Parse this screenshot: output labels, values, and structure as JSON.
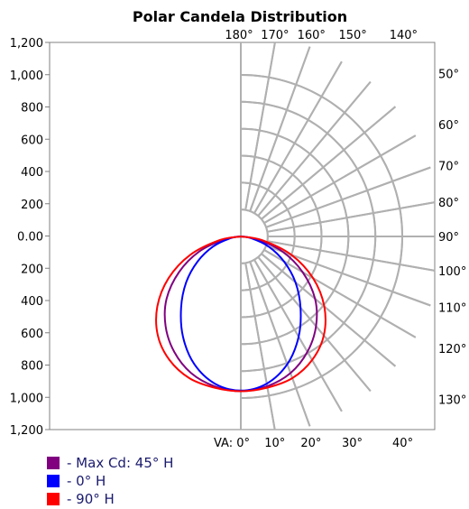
{
  "chart_data": {
    "type": "polar-candela",
    "title": "Polar Candela Distribution",
    "r_max": 1200,
    "y_tick_labels": [
      "1,200",
      "1,000",
      "800",
      "600",
      "400",
      "200",
      "0.00",
      "200",
      "400",
      "600",
      "800",
      "1,000",
      "1,200"
    ],
    "top_angle_labels": [
      "180°",
      "170°",
      "160°",
      "150°",
      "140°"
    ],
    "right_angle_labels": [
      "130°",
      "120°",
      "110°",
      "100°",
      "90°",
      "80°",
      "70°",
      "60°",
      "50°"
    ],
    "bottom_angle_labels": [
      "VA: 0°",
      "10°",
      "20°",
      "30°",
      "40°"
    ],
    "angles_deg": [
      0,
      10,
      20,
      30,
      40,
      50,
      60,
      70,
      80,
      90
    ],
    "series": [
      {
        "name": "Max Cd: 45° H",
        "color": "#800080",
        "candela": [
          1150,
          1130,
          1080,
          990,
          870,
          720,
          530,
          330,
          120,
          0
        ]
      },
      {
        "name": "0° H",
        "color": "#0000ff",
        "candela": [
          1145,
          1110,
          1010,
          860,
          690,
          530,
          370,
          220,
          80,
          0
        ]
      },
      {
        "name": "90° H",
        "color": "#ff0000",
        "candela": [
          1150,
          1140,
          1120,
          1060,
          960,
          810,
          620,
          400,
          160,
          0
        ]
      }
    ],
    "legend_labels": [
      "- Max Cd: 45° H",
      "- 0° H",
      "- 90° H"
    ],
    "grid": true
  }
}
